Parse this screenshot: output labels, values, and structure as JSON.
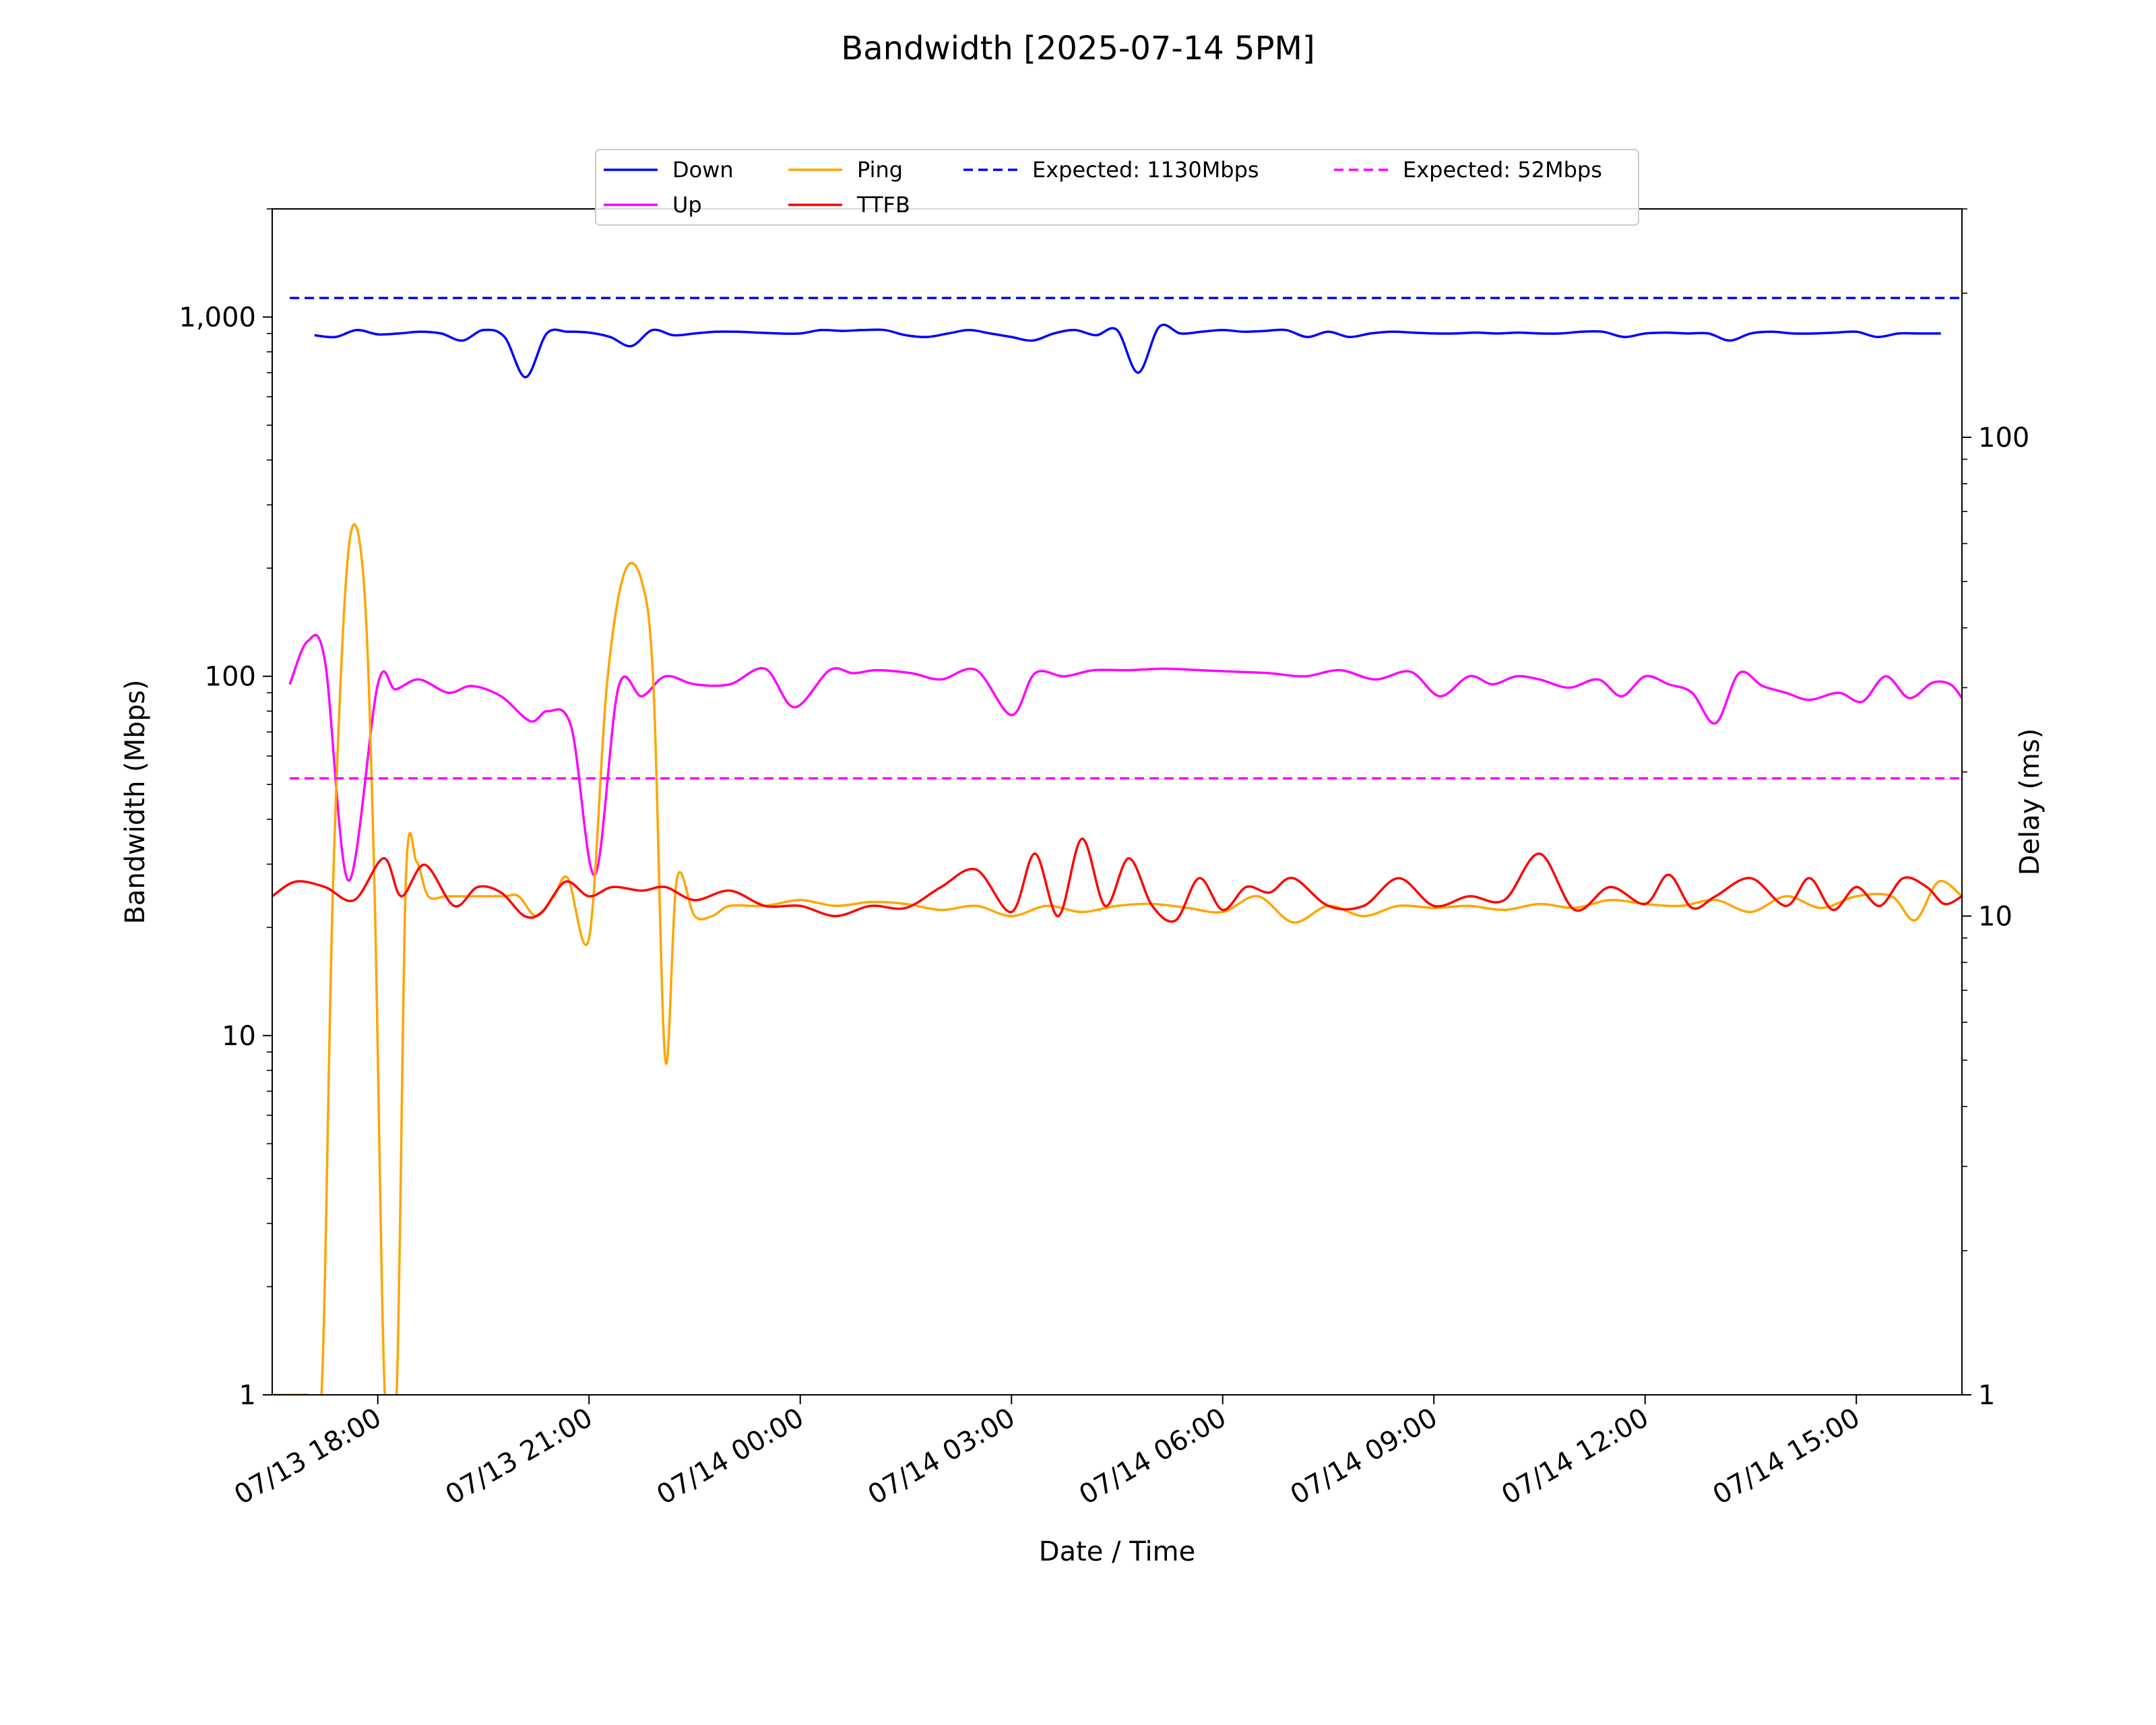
{
  "chart_data": {
    "type": "line",
    "title": "Bandwidth [2025-07-14 5PM]",
    "xlabel": "Date / Time",
    "ylabel": "Bandwidth (Mbps)",
    "y2label": "Delay (ms)",
    "xlim": [
      "07/13 16:30",
      "07/14 16:30"
    ],
    "ylim": [
      1,
      2000
    ],
    "y2lim": [
      1,
      300
    ],
    "yscale": "log",
    "y2scale": "log",
    "grid": false,
    "legend_position": "top-center",
    "x_ticks": [
      "07/13 18:00",
      "07/13 21:00",
      "07/14 00:00",
      "07/14 03:00",
      "07/14 06:00",
      "07/14 09:00",
      "07/14 12:00",
      "07/14 15:00"
    ],
    "y_ticks": [
      {
        "value": 1,
        "label": "1"
      },
      {
        "value": 10,
        "label": "10"
      },
      {
        "value": 100,
        "label": "100"
      },
      {
        "value": 1000,
        "label": "1,000"
      }
    ],
    "y2_ticks": [
      {
        "value": 1,
        "label": "1"
      },
      {
        "value": 10,
        "label": "10"
      },
      {
        "value": 100,
        "label": "100"
      }
    ],
    "series": [
      {
        "name": "Down",
        "axis": "left",
        "color": "#0000ff",
        "style": "solid",
        "x": [
          "07/13 17:06",
          "07/13 17:24",
          "07/13 17:42",
          "07/13 18:00",
          "07/13 18:18",
          "07/13 18:36",
          "07/13 18:54",
          "07/13 19:12",
          "07/13 19:30",
          "07/13 19:48",
          "07/13 20:06",
          "07/13 20:24",
          "07/13 20:42",
          "07/13 21:00",
          "07/13 21:18",
          "07/13 21:36",
          "07/13 21:54",
          "07/13 22:12",
          "07/13 22:30",
          "07/13 22:48",
          "07/13 23:06",
          "07/13 23:24",
          "07/13 23:42",
          "07/14 00:00",
          "07/14 00:18",
          "07/14 00:36",
          "07/14 00:54",
          "07/14 01:12",
          "07/14 01:30",
          "07/14 01:48",
          "07/14 02:06",
          "07/14 02:24",
          "07/14 02:42",
          "07/14 03:00",
          "07/14 03:18",
          "07/14 03:36",
          "07/14 03:54",
          "07/14 04:12",
          "07/14 04:30",
          "07/14 04:48",
          "07/14 05:06",
          "07/14 05:24",
          "07/14 05:42",
          "07/14 06:00",
          "07/14 06:18",
          "07/14 06:36",
          "07/14 06:54",
          "07/14 07:12",
          "07/14 07:30",
          "07/14 07:48",
          "07/14 08:06",
          "07/14 08:24",
          "07/14 08:42",
          "07/14 09:00",
          "07/14 09:18",
          "07/14 09:36",
          "07/14 09:54",
          "07/14 10:12",
          "07/14 10:30",
          "07/14 10:48",
          "07/14 11:06",
          "07/14 11:24",
          "07/14 11:42",
          "07/14 12:00",
          "07/14 12:18",
          "07/14 12:36",
          "07/14 12:54",
          "07/14 13:12",
          "07/14 13:30",
          "07/14 13:48",
          "07/14 14:06",
          "07/14 14:24",
          "07/14 14:42",
          "07/14 15:00",
          "07/14 15:18",
          "07/14 15:36",
          "07/14 15:54",
          "07/14 16:12"
        ],
        "values": [
          890,
          880,
          920,
          895,
          900,
          910,
          900,
          860,
          920,
          880,
          680,
          900,
          910,
          905,
          880,
          830,
          920,
          890,
          900,
          910,
          910,
          905,
          900,
          900,
          920,
          915,
          920,
          920,
          890,
          880,
          900,
          920,
          900,
          880,
          860,
          900,
          920,
          890,
          920,
          700,
          940,
          900,
          910,
          920,
          910,
          915,
          920,
          880,
          910,
          880,
          900,
          910,
          905,
          900,
          900,
          905,
          900,
          905,
          900,
          900,
          910,
          910,
          880,
          900,
          905,
          900,
          900,
          860,
          900,
          910,
          900,
          900,
          905,
          910,
          880,
          900,
          900,
          900
        ]
      },
      {
        "name": "Up",
        "axis": "left",
        "color": "#ff00ff",
        "style": "solid",
        "x": [
          "07/13 16:45",
          "07/13 17:00",
          "07/13 17:15",
          "07/13 17:35",
          "07/13 18:00",
          "07/13 18:15",
          "07/13 18:35",
          "07/13 19:00",
          "07/13 19:20",
          "07/13 19:45",
          "07/13 20:10",
          "07/13 20:25",
          "07/13 20:45",
          "07/13 21:05",
          "07/13 21:25",
          "07/13 21:45",
          "07/13 22:05",
          "07/13 22:30",
          "07/13 23:00",
          "07/13 23:30",
          "07/13 23:55",
          "07/14 00:25",
          "07/14 00:45",
          "07/14 01:05",
          "07/14 01:35",
          "07/14 02:00",
          "07/14 02:30",
          "07/14 03:00",
          "07/14 03:20",
          "07/14 03:45",
          "07/14 04:10",
          "07/14 04:40",
          "07/14 05:10",
          "07/14 05:40",
          "07/14 06:10",
          "07/14 06:40",
          "07/14 07:10",
          "07/14 07:40",
          "07/14 08:10",
          "07/14 08:40",
          "07/14 09:05",
          "07/14 09:30",
          "07/14 09:50",
          "07/14 10:10",
          "07/14 10:30",
          "07/14 10:55",
          "07/14 11:20",
          "07/14 11:40",
          "07/14 12:00",
          "07/14 12:20",
          "07/14 12:40",
          "07/14 13:00",
          "07/14 13:20",
          "07/14 13:40",
          "07/14 14:00",
          "07/14 14:20",
          "07/14 14:45",
          "07/14 15:05",
          "07/14 15:25",
          "07/14 15:45",
          "07/14 16:05",
          "07/14 16:20",
          "07/14 16:30"
        ],
        "values": [
          95,
          125,
          110,
          27,
          95,
          92,
          98,
          90,
          94,
          88,
          75,
          80,
          72,
          28,
          93,
          88,
          100,
          95,
          95,
          105,
          82,
          104,
          102,
          104,
          102,
          98,
          104,
          78,
          102,
          100,
          104,
          104,
          105,
          104,
          103,
          102,
          100,
          104,
          98,
          103,
          88,
          100,
          95,
          100,
          98,
          93,
          98,
          88,
          100,
          95,
          90,
          74,
          102,
          94,
          90,
          86,
          90,
          85,
          100,
          87,
          96,
          95,
          87
        ]
      },
      {
        "name": "Ping",
        "axis": "right",
        "color": "#ffa500",
        "style": "solid",
        "x": [
          "07/13 16:30",
          "07/13 16:38",
          "07/13 16:50",
          "07/13 17:00",
          "07/13 17:12",
          "07/13 17:22",
          "07/13 17:35",
          "07/13 17:48",
          "07/13 17:57",
          "07/13 18:06",
          "07/13 18:16",
          "07/13 18:24",
          "07/13 18:33",
          "07/13 18:43",
          "07/13 18:58",
          "07/13 19:15",
          "07/13 19:30",
          "07/13 19:48",
          "07/13 20:00",
          "07/13 20:15",
          "07/13 20:30",
          "07/13 20:42",
          "07/13 21:00",
          "07/13 21:15",
          "07/13 21:30",
          "07/13 21:45",
          "07/13 21:55",
          "07/13 22:05",
          "07/13 22:15",
          "07/13 22:30",
          "07/13 22:45",
          "07/13 23:00",
          "07/13 23:30",
          "07/14 00:00",
          "07/14 00:30",
          "07/14 01:00",
          "07/14 01:30",
          "07/14 02:00",
          "07/14 02:30",
          "07/14 03:00",
          "07/14 03:30",
          "07/14 04:00",
          "07/14 04:30",
          "07/14 05:00",
          "07/14 05:30",
          "07/14 06:00",
          "07/14 06:30",
          "07/14 07:00",
          "07/14 07:30",
          "07/14 08:00",
          "07/14 08:30",
          "07/14 09:00",
          "07/14 09:30",
          "07/14 10:00",
          "07/14 10:30",
          "07/14 11:00",
          "07/14 11:30",
          "07/14 12:00",
          "07/14 12:30",
          "07/14 13:00",
          "07/14 13:30",
          "07/14 14:00",
          "07/14 14:30",
          "07/14 15:00",
          "07/14 15:30",
          "07/14 15:50",
          "07/14 16:10",
          "07/14 16:30"
        ],
        "values": [
          1.0,
          1.0,
          1.0,
          1.0,
          1.0,
          12,
          58,
          50,
          12,
          1.0,
          1.0,
          12,
          13,
          11,
          11,
          11,
          11,
          11,
          11,
          10,
          11,
          12,
          9,
          30,
          52,
          50,
          30,
          5,
          12,
          10,
          10,
          10.5,
          10.5,
          10.8,
          10.5,
          10.7,
          10.6,
          10.3,
          10.5,
          10,
          10.5,
          10.2,
          10.5,
          10.6,
          10.4,
          10.2,
          11,
          9.7,
          10.5,
          10,
          10.5,
          10.4,
          10.5,
          10.3,
          10.6,
          10.4,
          10.8,
          10.6,
          10.5,
          10.8,
          10.2,
          11,
          10.4,
          11,
          11,
          9.8,
          11.8,
          11
        ]
      },
      {
        "name": "TTFB",
        "axis": "right",
        "color": "#ff0000",
        "style": "solid",
        "x": [
          "07/13 16:30",
          "07/13 16:50",
          "07/13 17:15",
          "07/13 17:40",
          "07/13 18:05",
          "07/13 18:20",
          "07/13 18:40",
          "07/13 19:05",
          "07/13 19:25",
          "07/13 19:45",
          "07/13 20:05",
          "07/13 20:20",
          "07/13 20:40",
          "07/13 21:00",
          "07/13 21:20",
          "07/13 21:45",
          "07/13 22:05",
          "07/13 22:30",
          "07/13 23:00",
          "07/13 23:30",
          "07/14 00:00",
          "07/14 00:30",
          "07/14 01:00",
          "07/14 01:30",
          "07/14 02:00",
          "07/14 02:30",
          "07/14 03:00",
          "07/14 03:20",
          "07/14 03:40",
          "07/14 04:00",
          "07/14 04:20",
          "07/14 04:40",
          "07/14 05:00",
          "07/14 05:20",
          "07/14 05:40",
          "07/14 06:00",
          "07/14 06:20",
          "07/14 06:40",
          "07/14 07:00",
          "07/14 07:30",
          "07/14 08:00",
          "07/14 08:30",
          "07/14 09:00",
          "07/14 09:30",
          "07/14 10:00",
          "07/14 10:30",
          "07/14 11:00",
          "07/14 11:30",
          "07/14 12:00",
          "07/14 12:20",
          "07/14 12:40",
          "07/14 13:00",
          "07/14 13:30",
          "07/14 14:00",
          "07/14 14:20",
          "07/14 14:40",
          "07/14 15:00",
          "07/14 15:20",
          "07/14 15:40",
          "07/14 16:00",
          "07/14 16:15",
          "07/14 16:30"
        ],
        "values": [
          11,
          11.8,
          11.5,
          10.8,
          13.2,
          11,
          12.8,
          10.5,
          11.5,
          11.2,
          10,
          10.2,
          11.8,
          11,
          11.5,
          11.3,
          11.5,
          10.8,
          11.3,
          10.5,
          10.5,
          10,
          10.5,
          10.4,
          11.5,
          12.5,
          10.2,
          13.5,
          10,
          14.5,
          10.5,
          13.2,
          10.5,
          9.8,
          12,
          10.3,
          11.5,
          11.2,
          12,
          10.5,
          10.5,
          12,
          10.5,
          11,
          10.8,
          13.5,
          10.3,
          11.5,
          10.6,
          12.2,
          10.4,
          11,
          12,
          10.5,
          12,
          10.3,
          11.5,
          10.5,
          12,
          11.5,
          10.6,
          11
        ]
      },
      {
        "name": "Expected: 1130Mbps",
        "axis": "left",
        "color": "#0000ff",
        "style": "dashed",
        "x": [
          "07/13 16:45",
          "07/14 16:30"
        ],
        "values": [
          1130,
          1130
        ]
      },
      {
        "name": "Expected: 52Mbps",
        "axis": "left",
        "color": "#ff00ff",
        "style": "dashed",
        "x": [
          "07/13 16:45",
          "07/14 16:30"
        ],
        "values": [
          52,
          52
        ]
      }
    ]
  }
}
